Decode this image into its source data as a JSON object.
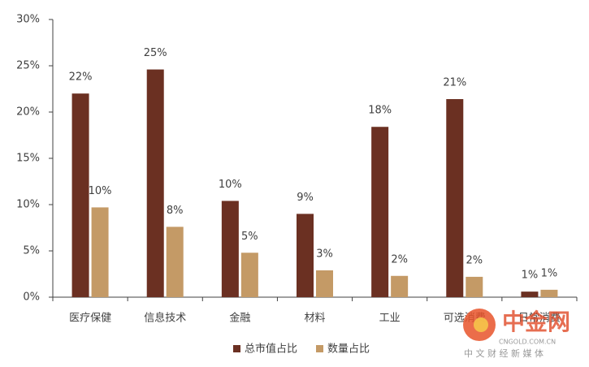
{
  "chart_data": {
    "type": "bar",
    "categories": [
      "医疗保健",
      "信息技术",
      "金融",
      "材料",
      "工业",
      "可选消费",
      "日常消费"
    ],
    "series": [
      {
        "name": "总市值占比",
        "color": "#6b3022",
        "values": [
          22.0,
          24.6,
          10.4,
          9.0,
          18.4,
          21.4,
          0.6
        ],
        "value_labels": [
          "22%",
          "25%",
          "10%",
          "9%",
          "18%",
          "21%",
          "1%"
        ]
      },
      {
        "name": "数量占比",
        "color": "#c49a66",
        "values": [
          9.7,
          7.6,
          4.8,
          2.9,
          2.3,
          2.2,
          0.8
        ],
        "value_labels": [
          "10%",
          "8%",
          "5%",
          "3%",
          "2%",
          "2%",
          "1%"
        ]
      }
    ],
    "ylim": [
      0,
      30
    ],
    "yticks": [
      {
        "value": 0,
        "label": "0%"
      },
      {
        "value": 5,
        "label": "5%"
      },
      {
        "value": 10,
        "label": "10%"
      },
      {
        "value": 15,
        "label": "15%"
      },
      {
        "value": 20,
        "label": "20%"
      },
      {
        "value": 25,
        "label": "25%"
      },
      {
        "value": 30,
        "label": "30%"
      }
    ],
    "grid": false,
    "legend": "bottom",
    "watermark": {
      "name": "中金网",
      "domain": "CNGOLD.COM.CN",
      "slogan": "中 文 财 经 新 媒 体"
    }
  }
}
